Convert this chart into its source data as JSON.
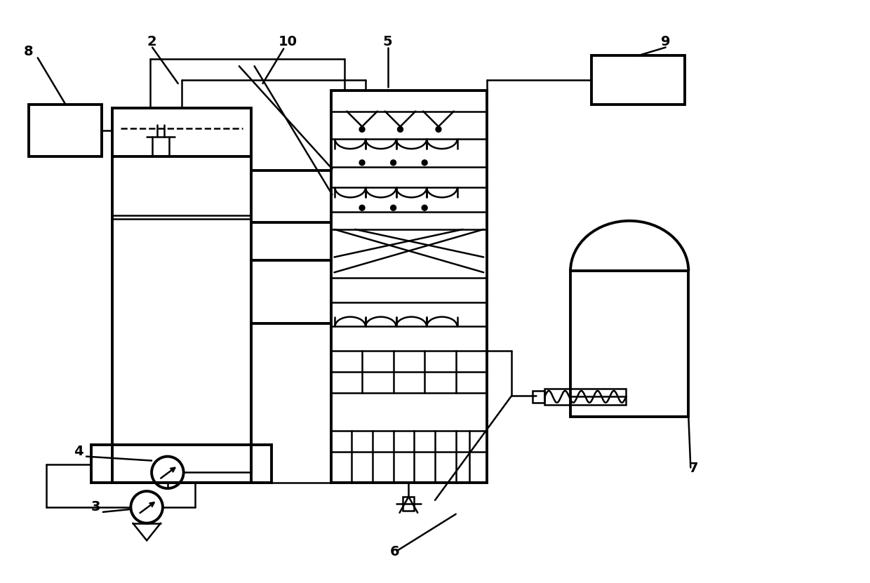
{
  "bg_color": "#ffffff",
  "lc": "#000000",
  "lw": 1.8,
  "tlw": 2.8,
  "fw": 12.4,
  "fh": 8.31,
  "xmax": 12.4,
  "ymax": 8.31
}
